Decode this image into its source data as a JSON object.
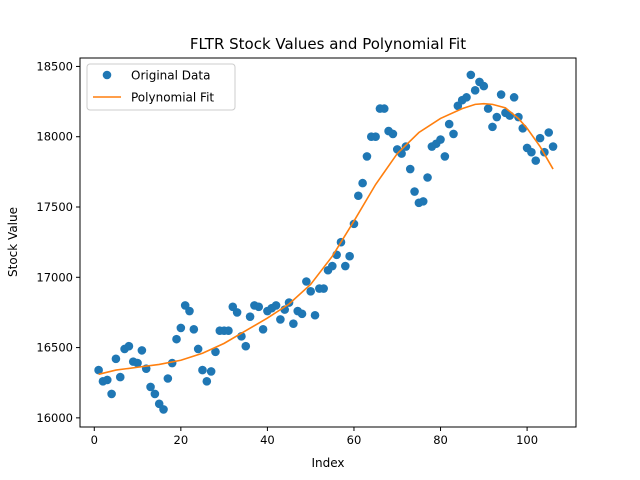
{
  "chart_data": {
    "type": "scatter",
    "title": "FLTR Stock Values and Polynomial Fit",
    "xlabel": "Index",
    "ylabel": "Stock Value",
    "xlim": [
      -3.3,
      111.3
    ],
    "ylim": [
      15935,
      18560
    ],
    "xticks": [
      0,
      20,
      40,
      60,
      80,
      100
    ],
    "yticks": [
      16000,
      16500,
      17000,
      17500,
      18000,
      18500
    ],
    "grid": false,
    "legend": {
      "position": "upper left",
      "entries": [
        "Original Data",
        "Polynomial Fit"
      ]
    },
    "series": [
      {
        "name": "Original Data",
        "kind": "scatter",
        "color": "#1f77b4",
        "x": [
          1,
          2,
          3,
          4,
          5,
          6,
          7,
          8,
          9,
          10,
          11,
          12,
          13,
          14,
          15,
          16,
          17,
          18,
          19,
          20,
          21,
          22,
          23,
          24,
          25,
          26,
          27,
          28,
          29,
          30,
          31,
          32,
          33,
          34,
          35,
          36,
          37,
          38,
          39,
          40,
          41,
          42,
          43,
          44,
          45,
          46,
          47,
          48,
          49,
          50,
          51,
          52,
          53,
          54,
          55,
          56,
          57,
          58,
          59,
          60,
          61,
          62,
          63,
          64,
          65,
          66,
          67,
          68,
          69,
          70,
          71,
          72,
          73,
          74,
          75,
          76,
          77,
          78,
          79,
          80,
          81,
          82,
          83,
          84,
          85,
          86,
          87,
          88,
          89,
          90,
          91,
          92,
          93,
          94,
          95,
          96,
          97,
          98,
          99,
          100,
          101,
          102,
          103,
          104,
          105,
          106
        ],
        "y": [
          16340,
          16260,
          16270,
          16170,
          16420,
          16290,
          16490,
          16510,
          16400,
          16390,
          16480,
          16350,
          16220,
          16170,
          16100,
          16060,
          16280,
          16390,
          16560,
          16640,
          16800,
          16760,
          16630,
          16490,
          16340,
          16260,
          16330,
          16470,
          16620,
          16620,
          16620,
          16790,
          16750,
          16580,
          16510,
          16720,
          16800,
          16790,
          16630,
          16760,
          16780,
          16800,
          16700,
          16770,
          16820,
          16670,
          16760,
          16740,
          16970,
          16900,
          16730,
          16920,
          16920,
          17050,
          17080,
          17160,
          17250,
          17080,
          17150,
          17380,
          17580,
          17670,
          17860,
          18000,
          18000,
          18200,
          18200,
          18040,
          18020,
          17910,
          17880,
          17930,
          17770,
          17610,
          17530,
          17540,
          17710,
          17930,
          17950,
          17980,
          17860,
          18090,
          18020,
          18220,
          18260,
          18280,
          18440,
          18330,
          18390,
          18360,
          18200,
          18070,
          18140,
          18300,
          18170,
          18150,
          18280,
          18140,
          18060,
          17920,
          17890,
          17830,
          17990,
          17890,
          18030,
          17930
        ]
      },
      {
        "name": "Polynomial Fit",
        "kind": "line",
        "color": "#ff7f0e",
        "x": [
          1,
          5,
          10,
          15,
          20,
          25,
          30,
          35,
          40,
          45,
          50,
          55,
          60,
          65,
          70,
          75,
          80,
          85,
          88,
          90,
          92,
          95,
          98,
          100,
          103,
          106
        ],
        "y": [
          16310,
          16340,
          16360,
          16380,
          16410,
          16460,
          16530,
          16620,
          16710,
          16810,
          16950,
          17150,
          17400,
          17660,
          17880,
          18030,
          18130,
          18200,
          18230,
          18235,
          18230,
          18205,
          18130,
          18060,
          17930,
          17770
        ]
      }
    ]
  }
}
